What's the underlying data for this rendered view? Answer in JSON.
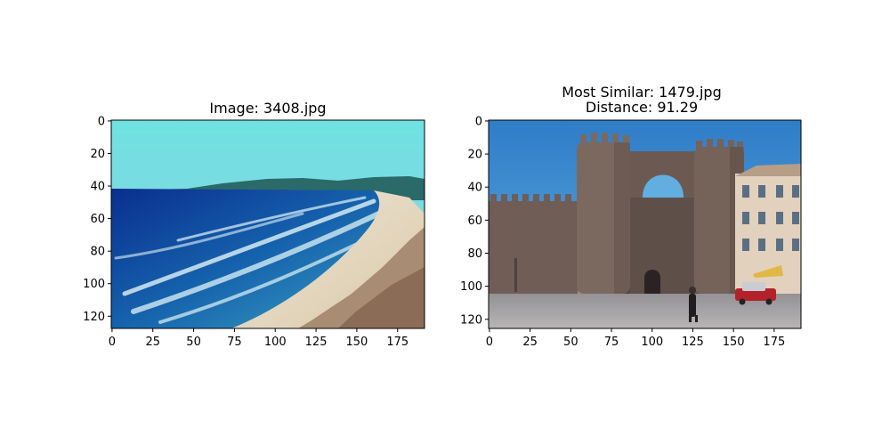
{
  "figure": {
    "panels": [
      {
        "title_lines": [
          "Image: 3408.jpg"
        ],
        "scene": "beach coastline with ocean waves, sandy shore and hills",
        "x_ticks": [
          "0",
          "25",
          "50",
          "75",
          "100",
          "125",
          "150",
          "175"
        ],
        "y_ticks": [
          "0",
          "20",
          "40",
          "60",
          "80",
          "100",
          "120"
        ],
        "x_tick_values": [
          0,
          25,
          50,
          75,
          100,
          125,
          150,
          175
        ],
        "y_tick_values": [
          0,
          20,
          40,
          60,
          80,
          100,
          120
        ],
        "xlim": [
          -0.5,
          191.5
        ],
        "ylim": [
          127.5,
          -0.5
        ]
      },
      {
        "title_lines": [
          "Most Similar: 1479.jpg",
          "Distance: 91.29"
        ],
        "scene": "medieval stone city gate with two round towers and a plaza",
        "x_ticks": [
          "0",
          "25",
          "50",
          "75",
          "100",
          "125",
          "150",
          "175"
        ],
        "y_ticks": [
          "0",
          "20",
          "40",
          "60",
          "80",
          "100",
          "120"
        ],
        "x_tick_values": [
          0,
          25,
          50,
          75,
          100,
          125,
          150,
          175
        ],
        "y_tick_values": [
          0,
          20,
          40,
          60,
          80,
          100,
          120
        ],
        "xlim": [
          -0.5,
          191.5
        ],
        "ylim": [
          125.5,
          -0.5
        ]
      }
    ],
    "colors": {
      "sky_beach": "#74d6dc",
      "ocean_deep": "#0e3f9c",
      "sand": "#e8dcc6",
      "sky_castle": "#3f8cd0",
      "stone": "#6e5e55",
      "plaza": "#a7a4a4"
    }
  }
}
